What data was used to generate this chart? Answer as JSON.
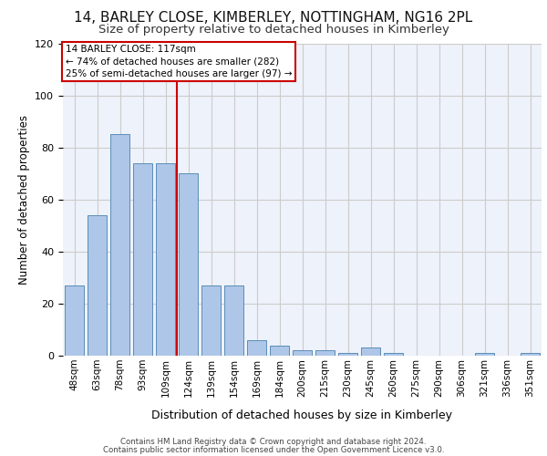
{
  "title_line1": "14, BARLEY CLOSE, KIMBERLEY, NOTTINGHAM, NG16 2PL",
  "title_line2": "Size of property relative to detached houses in Kimberley",
  "xlabel": "Distribution of detached houses by size in Kimberley",
  "ylabel": "Number of detached properties",
  "footer_line1": "Contains HM Land Registry data © Crown copyright and database right 2024.",
  "footer_line2": "Contains public sector information licensed under the Open Government Licence v3.0.",
  "categories": [
    "48sqm",
    "63sqm",
    "78sqm",
    "93sqm",
    "109sqm",
    "124sqm",
    "139sqm",
    "154sqm",
    "169sqm",
    "184sqm",
    "200sqm",
    "215sqm",
    "230sqm",
    "245sqm",
    "260sqm",
    "275sqm",
    "290sqm",
    "306sqm",
    "321sqm",
    "336sqm",
    "351sqm"
  ],
  "values": [
    27,
    54,
    85,
    74,
    74,
    70,
    27,
    27,
    6,
    4,
    2,
    2,
    1,
    3,
    1,
    0,
    0,
    0,
    1,
    0,
    1
  ],
  "bar_color": "#aec6e8",
  "bar_edge_color": "#5b8db8",
  "property_line_x": 4.5,
  "annotation_text_line1": "14 BARLEY CLOSE: 117sqm",
  "annotation_text_line2": "← 74% of detached houses are smaller (282)",
  "annotation_text_line3": "25% of semi-detached houses are larger (97) →",
  "annotation_box_color": "#ffffff",
  "annotation_box_edge_color": "#cc0000",
  "vline_color": "#cc0000",
  "ylim": [
    0,
    120
  ],
  "yticks": [
    0,
    20,
    40,
    60,
    80,
    100,
    120
  ],
  "grid_color": "#cccccc",
  "background_color": "#eef2fa",
  "title_fontsize": 11,
  "subtitle_fontsize": 9.5,
  "ylabel_fontsize": 8.5,
  "xlabel_fontsize": 9,
  "tick_fontsize": 7.5,
  "annotation_fontsize": 7.5,
  "footer_fontsize": 6.2
}
